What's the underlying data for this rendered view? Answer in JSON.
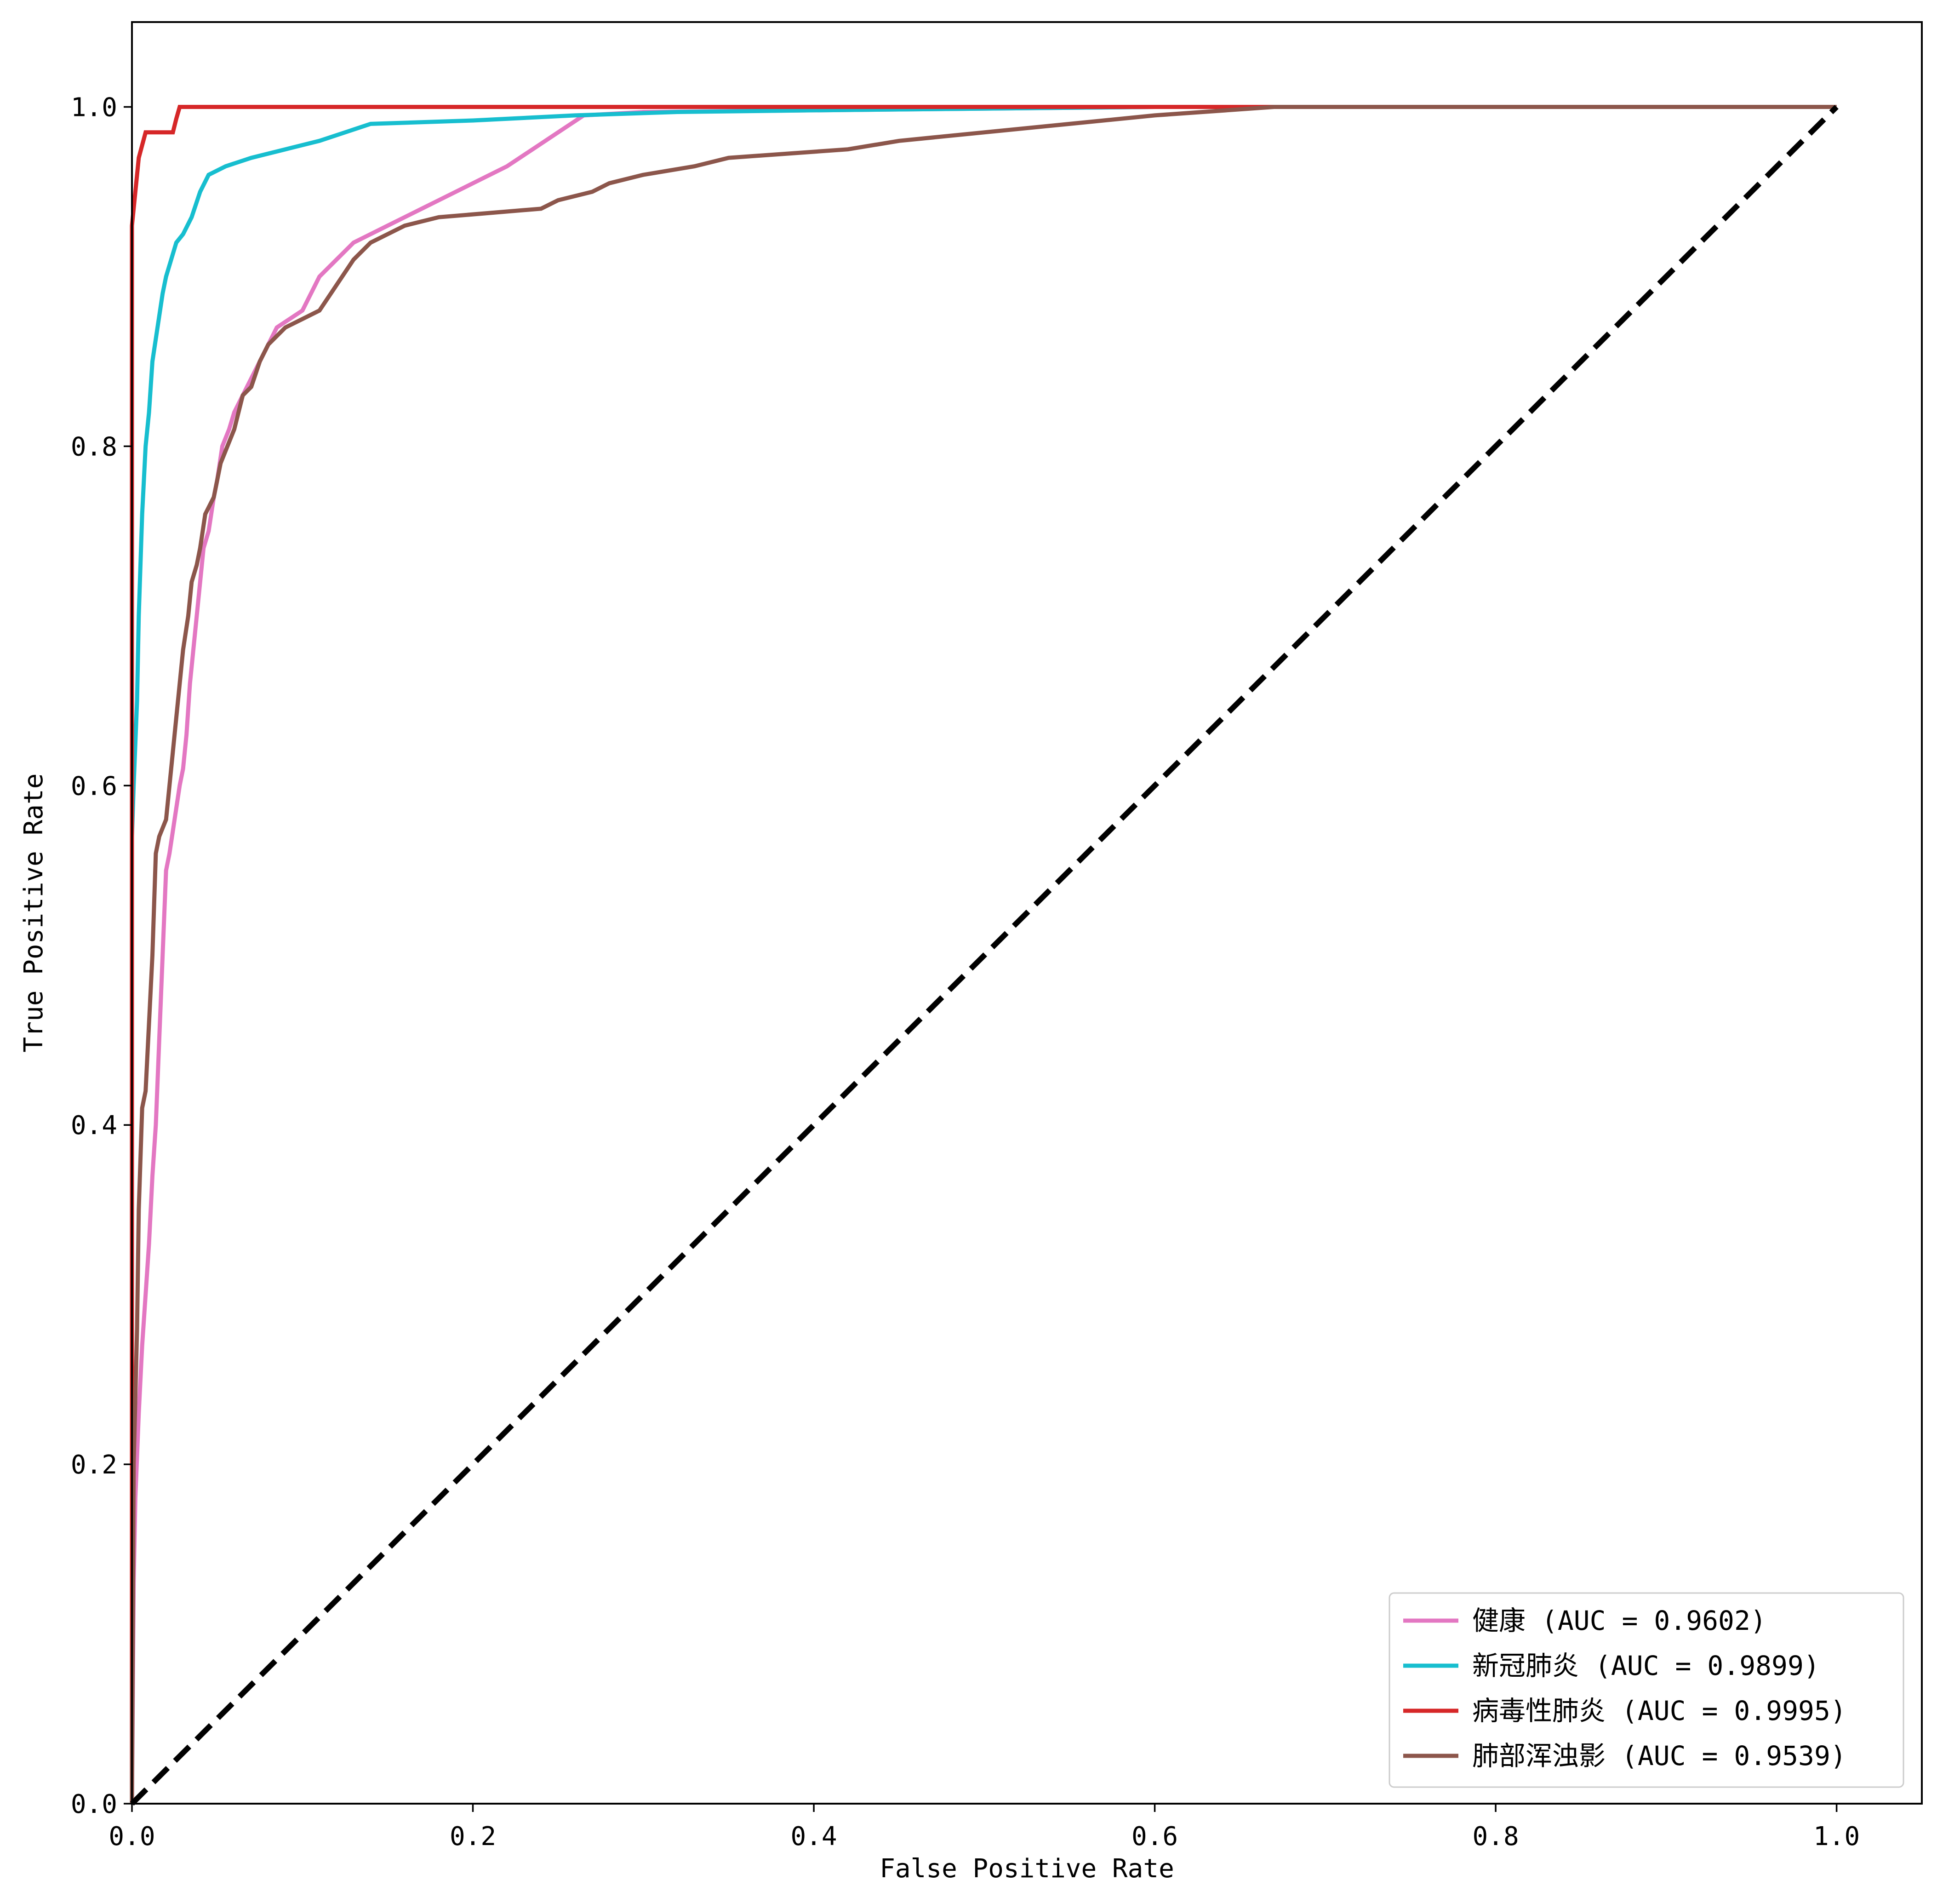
{
  "chart_data": {
    "type": "line",
    "xlabel": "False Positive Rate",
    "ylabel": "True Positive Rate",
    "xlim": [
      0.0,
      1.05
    ],
    "ylim": [
      0.0,
      1.05
    ],
    "x_ticks": [
      "0.0",
      "0.2",
      "0.4",
      "0.6",
      "0.8",
      "1.0"
    ],
    "y_ticks": [
      "0.0",
      "0.2",
      "0.4",
      "0.6",
      "0.8",
      "1.0"
    ],
    "legend_position": "lower-right",
    "grid": false,
    "series": [
      {
        "name": "健康 (AUC = 0.9602)",
        "color": "#e377c2",
        "points": [
          [
            0,
            0
          ],
          [
            0.001,
            0.13
          ],
          [
            0.002,
            0.18
          ],
          [
            0.004,
            0.23
          ],
          [
            0.006,
            0.27
          ],
          [
            0.008,
            0.3
          ],
          [
            0.01,
            0.33
          ],
          [
            0.012,
            0.37
          ],
          [
            0.014,
            0.4
          ],
          [
            0.016,
            0.45
          ],
          [
            0.018,
            0.5
          ],
          [
            0.02,
            0.55
          ],
          [
            0.022,
            0.56
          ],
          [
            0.025,
            0.58
          ],
          [
            0.028,
            0.6
          ],
          [
            0.03,
            0.61
          ],
          [
            0.032,
            0.63
          ],
          [
            0.034,
            0.66
          ],
          [
            0.036,
            0.68
          ],
          [
            0.038,
            0.7
          ],
          [
            0.04,
            0.72
          ],
          [
            0.042,
            0.74
          ],
          [
            0.045,
            0.75
          ],
          [
            0.048,
            0.77
          ],
          [
            0.05,
            0.78
          ],
          [
            0.053,
            0.8
          ],
          [
            0.057,
            0.81
          ],
          [
            0.06,
            0.82
          ],
          [
            0.065,
            0.83
          ],
          [
            0.07,
            0.84
          ],
          [
            0.075,
            0.85
          ],
          [
            0.08,
            0.86
          ],
          [
            0.085,
            0.87
          ],
          [
            0.1,
            0.88
          ],
          [
            0.11,
            0.9
          ],
          [
            0.12,
            0.91
          ],
          [
            0.13,
            0.92
          ],
          [
            0.15,
            0.93
          ],
          [
            0.17,
            0.94
          ],
          [
            0.18,
            0.945
          ],
          [
            0.2,
            0.955
          ],
          [
            0.22,
            0.965
          ],
          [
            0.235,
            0.975
          ],
          [
            0.25,
            0.985
          ],
          [
            0.265,
            0.995
          ],
          [
            0.3,
            0.997
          ],
          [
            0.4,
            0.998
          ],
          [
            0.6,
            1.0
          ],
          [
            1.0,
            1.0
          ]
        ]
      },
      {
        "name": "新冠肺炎 (AUC = 0.9899)",
        "color": "#17becf",
        "points": [
          [
            0,
            0
          ],
          [
            0.0,
            0.57
          ],
          [
            0.001,
            0.6
          ],
          [
            0.003,
            0.65
          ],
          [
            0.004,
            0.7
          ],
          [
            0.006,
            0.76
          ],
          [
            0.008,
            0.8
          ],
          [
            0.01,
            0.82
          ],
          [
            0.012,
            0.85
          ],
          [
            0.015,
            0.87
          ],
          [
            0.018,
            0.89
          ],
          [
            0.02,
            0.9
          ],
          [
            0.023,
            0.91
          ],
          [
            0.026,
            0.92
          ],
          [
            0.03,
            0.925
          ],
          [
            0.035,
            0.935
          ],
          [
            0.04,
            0.95
          ],
          [
            0.045,
            0.96
          ],
          [
            0.055,
            0.965
          ],
          [
            0.07,
            0.97
          ],
          [
            0.09,
            0.975
          ],
          [
            0.11,
            0.98
          ],
          [
            0.14,
            0.99
          ],
          [
            0.2,
            0.992
          ],
          [
            0.26,
            0.995
          ],
          [
            0.32,
            0.997
          ],
          [
            0.4,
            0.998
          ],
          [
            0.6,
            1.0
          ],
          [
            1.0,
            1.0
          ]
        ]
      },
      {
        "name": "病毒性肺炎 (AUC = 0.9995)",
        "color": "#d62728",
        "points": [
          [
            0,
            0
          ],
          [
            0.0,
            0.93
          ],
          [
            0.002,
            0.95
          ],
          [
            0.004,
            0.97
          ],
          [
            0.008,
            0.985
          ],
          [
            0.024,
            0.985
          ],
          [
            0.026,
            0.993
          ],
          [
            0.028,
            1.0
          ],
          [
            1.0,
            1.0
          ]
        ]
      },
      {
        "name": "肺部浑浊影 (AUC = 0.9539)",
        "color": "#8c564b",
        "points": [
          [
            0,
            0
          ],
          [
            0.001,
            0.2
          ],
          [
            0.003,
            0.28
          ],
          [
            0.004,
            0.35
          ],
          [
            0.006,
            0.41
          ],
          [
            0.008,
            0.42
          ],
          [
            0.01,
            0.46
          ],
          [
            0.012,
            0.5
          ],
          [
            0.014,
            0.56
          ],
          [
            0.016,
            0.57
          ],
          [
            0.02,
            0.58
          ],
          [
            0.022,
            0.6
          ],
          [
            0.025,
            0.63
          ],
          [
            0.028,
            0.66
          ],
          [
            0.03,
            0.68
          ],
          [
            0.033,
            0.7
          ],
          [
            0.035,
            0.72
          ],
          [
            0.038,
            0.73
          ],
          [
            0.04,
            0.74
          ],
          [
            0.043,
            0.76
          ],
          [
            0.048,
            0.77
          ],
          [
            0.052,
            0.79
          ],
          [
            0.056,
            0.8
          ],
          [
            0.06,
            0.81
          ],
          [
            0.065,
            0.83
          ],
          [
            0.07,
            0.835
          ],
          [
            0.075,
            0.85
          ],
          [
            0.08,
            0.86
          ],
          [
            0.09,
            0.87
          ],
          [
            0.1,
            0.875
          ],
          [
            0.11,
            0.88
          ],
          [
            0.12,
            0.895
          ],
          [
            0.13,
            0.91
          ],
          [
            0.14,
            0.92
          ],
          [
            0.16,
            0.93
          ],
          [
            0.18,
            0.935
          ],
          [
            0.24,
            0.94
          ],
          [
            0.25,
            0.945
          ],
          [
            0.27,
            0.95
          ],
          [
            0.28,
            0.955
          ],
          [
            0.3,
            0.96
          ],
          [
            0.33,
            0.965
          ],
          [
            0.35,
            0.97
          ],
          [
            0.42,
            0.975
          ],
          [
            0.45,
            0.98
          ],
          [
            0.5,
            0.985
          ],
          [
            0.55,
            0.99
          ],
          [
            0.6,
            0.995
          ],
          [
            0.67,
            1.0
          ],
          [
            1.0,
            1.0
          ]
        ]
      },
      {
        "name": "",
        "color": "#000000",
        "style": "dashed",
        "points": [
          [
            0,
            0
          ],
          [
            1,
            1
          ]
        ]
      }
    ]
  }
}
